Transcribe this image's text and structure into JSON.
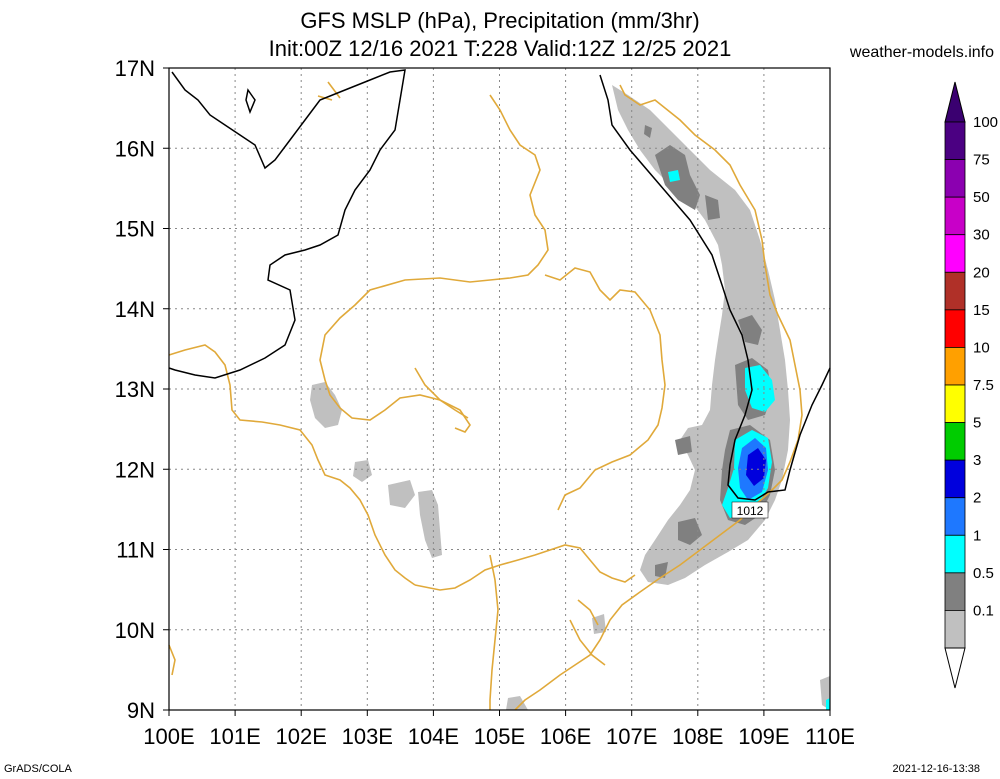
{
  "header": {
    "title_line1": "GFS MSLP (hPa), Precipitation (mm/3hr)",
    "title_line2": "Init:00Z 12/16 2021 T:228 Valid:12Z 12/25 2021",
    "credit": "weather-models.info"
  },
  "footer": {
    "left": "GrADS/COLA",
    "right": "2021-12-16-13:38"
  },
  "map": {
    "lat_labels": [
      "17N",
      "16N",
      "15N",
      "14N",
      "13N",
      "12N",
      "11N",
      "10N",
      "9N"
    ],
    "lon_labels": [
      "100E",
      "101E",
      "102E",
      "103E",
      "104E",
      "105E",
      "106E",
      "107E",
      "108E",
      "109E",
      "110E"
    ],
    "isobar_label": "1012",
    "colors": {
      "coastline": "#e0a93a",
      "isobar": "#000000",
      "grid": "#888888"
    }
  },
  "colorbar": {
    "levels": [
      {
        "label": "100",
        "color": "#4b0082"
      },
      {
        "label": "75",
        "color": "#8b00b0"
      },
      {
        "label": "50",
        "color": "#c800c8"
      },
      {
        "label": "30",
        "color": "#ff00ff"
      },
      {
        "label": "20",
        "color": "#b03028"
      },
      {
        "label": "15",
        "color": "#ff0000"
      },
      {
        "label": "10",
        "color": "#ffa000"
      },
      {
        "label": "7.5",
        "color": "#ffff00"
      },
      {
        "label": "5",
        "color": "#00cc00"
      },
      {
        "label": "3",
        "color": "#0000dd"
      },
      {
        "label": "2",
        "color": "#1e78ff"
      },
      {
        "label": "1",
        "color": "#00ffff"
      },
      {
        "label": "0.5",
        "color": "#808080"
      },
      {
        "label": "0.1",
        "color": "#c0c0c0"
      }
    ],
    "top_color": "#3a0070"
  }
}
